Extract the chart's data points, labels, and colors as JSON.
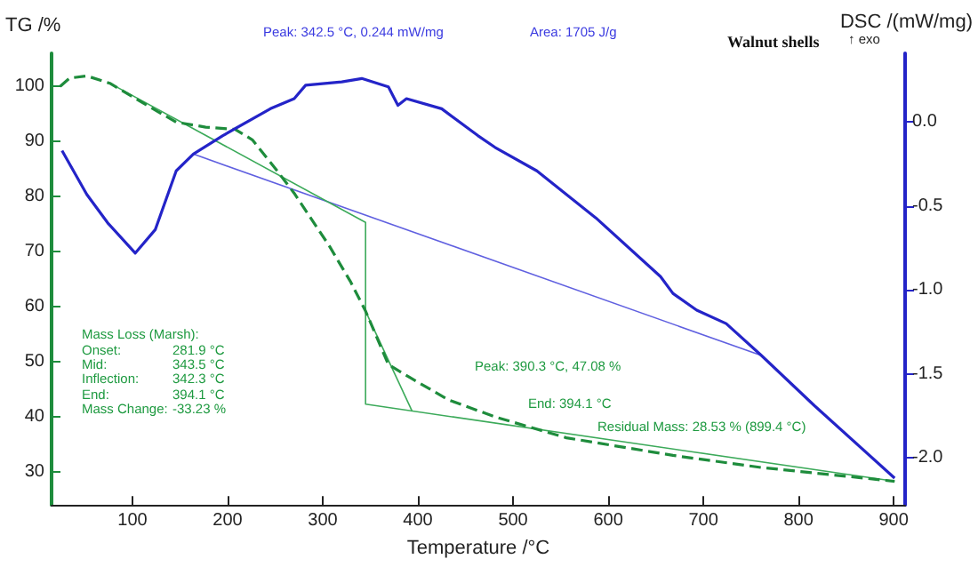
{
  "chart_data": {
    "type": "line",
    "title": "Walnut shells",
    "xlabel": "Temperature /°C",
    "ylabel": "TG /%",
    "y2label": "DSC /(mW/mg)",
    "xlim": [
      15,
      912
    ],
    "xticks": [
      100,
      200,
      300,
      400,
      500,
      600,
      700,
      800,
      900
    ],
    "ylim": [
      24,
      106
    ],
    "yticks": [
      30,
      40,
      50,
      60,
      70,
      80,
      90,
      100
    ],
    "y2lim": [
      -2.28,
      0.41
    ],
    "y2ticks": [
      {
        "value": 0,
        "label": "0.0"
      },
      -0.5,
      {
        "value": -1,
        "label": "-1.0"
      },
      -1.5,
      {
        "value": -2,
        "label": "-2.0"
      }
    ],
    "grid": false,
    "marker": "none",
    "series": [
      {
        "color": "#1e8c3c",
        "line_style": "dashed",
        "x": [
          24,
          34,
          52,
          77,
          108,
          146,
          177,
          208,
          226,
          251,
          270,
          307,
          329,
          345,
          369,
          391,
          432,
          481,
          556,
          668,
          761,
          901
        ],
        "values": [
          100,
          101.5,
          101.9,
          100.5,
          97.3,
          93.5,
          92.6,
          92.2,
          90.3,
          84.9,
          80.6,
          71,
          64.6,
          59.2,
          49.5,
          47.2,
          43.1,
          40,
          36.2,
          33,
          30.8,
          28.3
        ]
      },
      {
        "color": "#2424c8",
        "line_style": "solid",
        "axis": "y2",
        "x": [
          26,
          52,
          74,
          103,
          124,
          146,
          164,
          195,
          245,
          270,
          282,
          320,
          341,
          369,
          379,
          388,
          425,
          463,
          481,
          525,
          587,
          655,
          668,
          693,
          724,
          761,
          817,
          901
        ],
        "values": [
          -0.17,
          -0.43,
          -0.6,
          -0.78,
          -0.64,
          -0.29,
          -0.19,
          -0.08,
          0.08,
          0.14,
          0.22,
          0.24,
          0.26,
          0.21,
          0.1,
          0.14,
          0.08,
          -0.08,
          -0.15,
          -0.29,
          -0.57,
          -0.92,
          -1.02,
          -1.12,
          -1.2,
          -1.39,
          -1.69,
          -2.12
        ]
      },
      {
        "color": "#6060e0",
        "line_style": "solid",
        "axis": "y2",
        "x": [
          164,
          761
        ],
        "values": [
          -0.19,
          -1.39
        ]
      },
      {
        "color": "#3caa5a",
        "line_style": "solid",
        "x": [
          77,
          345,
          345,
          901
        ],
        "values": [
          100.5,
          75.3,
          42.3,
          28.3
        ]
      },
      {
        "color": "#3caa5a",
        "line_style": "solid",
        "x": [
          345,
          394
        ],
        "values": [
          59.2,
          41
        ]
      }
    ],
    "annotations": [
      "Peak: 342.5 °C, 0.244 mW/mg",
      "Area: 1705 J/g",
      "↑ exo",
      "Mass Loss (Marsh):",
      "Onset:",
      "281.9 °C",
      "Mid:",
      "343.5 °C",
      "Inflection:",
      "342.3 °C",
      "End:",
      "394.1 °C",
      "Mass Change:",
      "-33.23 %",
      "Peak: 390.3 °C, 47.08 %",
      "End: 394.1 °C",
      "Residual Mass: 28.53 % (899.4 °C)"
    ]
  }
}
